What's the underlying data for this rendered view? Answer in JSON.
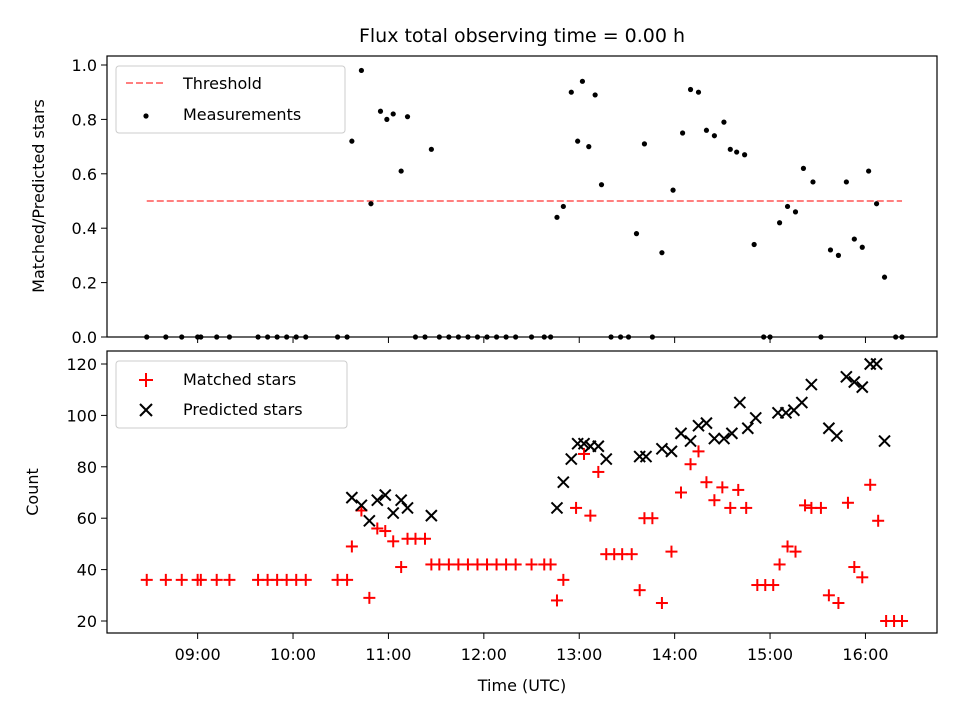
{
  "chart_data": [
    {
      "type": "scatter",
      "title": "Flux total observing time = 0.00 h",
      "xlabel": "",
      "ylabel": "Matched/Predicted stars",
      "ylim": [
        0.0,
        1.0
      ],
      "yticks": [
        "0.0",
        "0.2",
        "0.4",
        "0.6",
        "0.8",
        "1.0"
      ],
      "legend": {
        "placement": "top-left",
        "entries": [
          "Threshold",
          "Measurements"
        ]
      },
      "threshold": {
        "name": "Threshold",
        "value": 0.5,
        "x_start": "08:28",
        "x_end": "16:23",
        "color": "#ff7f7f",
        "style": "dashed"
      },
      "series": [
        {
          "name": "Measurements",
          "color": "#000000",
          "marker": "dot",
          "points": [
            [
              "08:28",
              0.0
            ],
            [
              "08:40",
              0.0
            ],
            [
              "08:50",
              0.0
            ],
            [
              "09:00",
              0.0
            ],
            [
              "09:02",
              0.0
            ],
            [
              "09:12",
              0.0
            ],
            [
              "09:20",
              0.0
            ],
            [
              "09:38",
              0.0
            ],
            [
              "09:44",
              0.0
            ],
            [
              "09:50",
              0.0
            ],
            [
              "09:56",
              0.0
            ],
            [
              "10:02",
              0.0
            ],
            [
              "10:08",
              0.0
            ],
            [
              "10:28",
              0.0
            ],
            [
              "10:34",
              0.0
            ],
            [
              "10:37",
              0.72
            ],
            [
              "10:43",
              0.98
            ],
            [
              "10:49",
              0.49
            ],
            [
              "10:55",
              0.83
            ],
            [
              "10:59",
              0.8
            ],
            [
              "11:03",
              0.82
            ],
            [
              "11:08",
              0.61
            ],
            [
              "11:12",
              0.81
            ],
            [
              "11:17",
              0.0
            ],
            [
              "11:23",
              0.0
            ],
            [
              "11:27",
              0.69
            ],
            [
              "11:32",
              0.0
            ],
            [
              "11:38",
              0.0
            ],
            [
              "11:44",
              0.0
            ],
            [
              "11:50",
              0.0
            ],
            [
              "11:56",
              0.0
            ],
            [
              "12:02",
              0.0
            ],
            [
              "12:08",
              0.0
            ],
            [
              "12:14",
              0.0
            ],
            [
              "12:20",
              0.0
            ],
            [
              "12:30",
              0.0
            ],
            [
              "12:38",
              0.0
            ],
            [
              "12:42",
              0.0
            ],
            [
              "12:46",
              0.44
            ],
            [
              "12:50",
              0.48
            ],
            [
              "12:55",
              0.9
            ],
            [
              "12:59",
              0.72
            ],
            [
              "13:02",
              0.94
            ],
            [
              "13:06",
              0.7
            ],
            [
              "13:10",
              0.89
            ],
            [
              "13:14",
              0.56
            ],
            [
              "13:20",
              0.0
            ],
            [
              "13:26",
              0.0
            ],
            [
              "13:31",
              0.0
            ],
            [
              "13:36",
              0.38
            ],
            [
              "13:41",
              0.71
            ],
            [
              "13:46",
              0.0
            ],
            [
              "13:52",
              0.31
            ],
            [
              "13:59",
              0.54
            ],
            [
              "14:05",
              0.75
            ],
            [
              "14:10",
              0.91
            ],
            [
              "14:15",
              0.9
            ],
            [
              "14:20",
              0.76
            ],
            [
              "14:25",
              0.74
            ],
            [
              "14:31",
              0.79
            ],
            [
              "14:35",
              0.69
            ],
            [
              "14:39",
              0.68
            ],
            [
              "14:44",
              0.67
            ],
            [
              "14:50",
              0.34
            ],
            [
              "14:56",
              0.0
            ],
            [
              "15:00",
              0.0
            ],
            [
              "15:06",
              0.42
            ],
            [
              "15:11",
              0.48
            ],
            [
              "15:16",
              0.46
            ],
            [
              "15:21",
              0.62
            ],
            [
              "15:27",
              0.57
            ],
            [
              "15:32",
              0.0
            ],
            [
              "15:38",
              0.32
            ],
            [
              "15:43",
              0.3
            ],
            [
              "15:48",
              0.57
            ],
            [
              "15:53",
              0.36
            ],
            [
              "15:58",
              0.33
            ],
            [
              "16:02",
              0.61
            ],
            [
              "16:07",
              0.49
            ],
            [
              "16:12",
              0.22
            ],
            [
              "16:19",
              0.0
            ],
            [
              "16:23",
              0.0
            ]
          ]
        }
      ]
    },
    {
      "type": "scatter",
      "title": "",
      "xlabel": "Time (UTC)",
      "ylabel": "Count",
      "ylim": [
        15,
        125
      ],
      "yticks": [
        "20",
        "40",
        "60",
        "80",
        "100",
        "120"
      ],
      "xticks": [
        "09:00",
        "10:00",
        "11:00",
        "12:00",
        "13:00",
        "14:00",
        "15:00",
        "16:00"
      ],
      "xlim": [
        "08:03",
        "16:45"
      ],
      "legend": {
        "placement": "top-left",
        "entries": [
          "Matched stars",
          "Predicted stars"
        ]
      },
      "series": [
        {
          "name": "Matched stars",
          "color": "#ff0000",
          "marker": "plus",
          "points": [
            [
              "08:28",
              36
            ],
            [
              "08:40",
              36
            ],
            [
              "08:50",
              36
            ],
            [
              "09:00",
              36
            ],
            [
              "09:02",
              36
            ],
            [
              "09:12",
              36
            ],
            [
              "09:20",
              36
            ],
            [
              "09:38",
              36
            ],
            [
              "09:44",
              36
            ],
            [
              "09:50",
              36
            ],
            [
              "09:56",
              36
            ],
            [
              "10:02",
              36
            ],
            [
              "10:08",
              36
            ],
            [
              "10:28",
              36
            ],
            [
              "10:34",
              36
            ],
            [
              "10:37",
              49
            ],
            [
              "10:43",
              63
            ],
            [
              "10:48",
              29
            ],
            [
              "10:53",
              56
            ],
            [
              "10:58",
              55
            ],
            [
              "11:03",
              51
            ],
            [
              "11:08",
              41
            ],
            [
              "11:12",
              52
            ],
            [
              "11:17",
              52
            ],
            [
              "11:23",
              52
            ],
            [
              "11:27",
              42
            ],
            [
              "11:32",
              42
            ],
            [
              "11:38",
              42
            ],
            [
              "11:44",
              42
            ],
            [
              "11:50",
              42
            ],
            [
              "11:56",
              42
            ],
            [
              "12:02",
              42
            ],
            [
              "12:08",
              42
            ],
            [
              "12:14",
              42
            ],
            [
              "12:20",
              42
            ],
            [
              "12:30",
              42
            ],
            [
              "12:38",
              42
            ],
            [
              "12:42",
              42
            ],
            [
              "12:46",
              28
            ],
            [
              "12:50",
              36
            ],
            [
              "12:58",
              64
            ],
            [
              "13:03",
              85
            ],
            [
              "13:07",
              61
            ],
            [
              "13:12",
              78
            ],
            [
              "13:17",
              46
            ],
            [
              "13:22",
              46
            ],
            [
              "13:27",
              46
            ],
            [
              "13:33",
              46
            ],
            [
              "13:38",
              32
            ],
            [
              "13:41",
              60
            ],
            [
              "13:46",
              60
            ],
            [
              "13:52",
              27
            ],
            [
              "13:58",
              47
            ],
            [
              "14:04",
              70
            ],
            [
              "14:10",
              81
            ],
            [
              "14:15",
              86
            ],
            [
              "14:20",
              74
            ],
            [
              "14:25",
              67
            ],
            [
              "14:30",
              72
            ],
            [
              "14:35",
              64
            ],
            [
              "14:40",
              71
            ],
            [
              "14:45",
              64
            ],
            [
              "14:52",
              34
            ],
            [
              "14:57",
              34
            ],
            [
              "15:02",
              34
            ],
            [
              "15:06",
              42
            ],
            [
              "15:11",
              49
            ],
            [
              "15:16",
              47
            ],
            [
              "15:22",
              65
            ],
            [
              "15:26",
              64
            ],
            [
              "15:32",
              64
            ],
            [
              "15:37",
              30
            ],
            [
              "15:43",
              27
            ],
            [
              "15:49",
              66
            ],
            [
              "15:53",
              41
            ],
            [
              "15:58",
              37
            ],
            [
              "16:03",
              73
            ],
            [
              "16:08",
              59
            ],
            [
              "16:13",
              20
            ],
            [
              "16:18",
              20
            ],
            [
              "16:23",
              20
            ]
          ]
        },
        {
          "name": "Predicted stars",
          "color": "#000000",
          "marker": "x",
          "points": [
            [
              "10:37",
              68
            ],
            [
              "10:43",
              65
            ],
            [
              "10:48",
              59
            ],
            [
              "10:53",
              67
            ],
            [
              "10:58",
              69
            ],
            [
              "11:03",
              62
            ],
            [
              "11:08",
              67
            ],
            [
              "11:12",
              64
            ],
            [
              "11:27",
              61
            ],
            [
              "12:46",
              64
            ],
            [
              "12:50",
              74
            ],
            [
              "12:55",
              83
            ],
            [
              "12:59",
              89
            ],
            [
              "13:03",
              89
            ],
            [
              "13:07",
              88
            ],
            [
              "13:12",
              88
            ],
            [
              "13:17",
              83
            ],
            [
              "13:38",
              84
            ],
            [
              "13:42",
              84
            ],
            [
              "13:52",
              87
            ],
            [
              "13:58",
              86
            ],
            [
              "14:04",
              93
            ],
            [
              "14:10",
              90
            ],
            [
              "14:15",
              96
            ],
            [
              "14:20",
              97
            ],
            [
              "14:25",
              91
            ],
            [
              "14:31",
              91
            ],
            [
              "14:36",
              93
            ],
            [
              "14:41",
              105
            ],
            [
              "14:46",
              95
            ],
            [
              "14:51",
              99
            ],
            [
              "15:05",
              101
            ],
            [
              "15:10",
              101
            ],
            [
              "15:15",
              102
            ],
            [
              "15:20",
              105
            ],
            [
              "15:26",
              112
            ],
            [
              "15:37",
              95
            ],
            [
              "15:42",
              92
            ],
            [
              "15:48",
              115
            ],
            [
              "15:53",
              113
            ],
            [
              "15:58",
              111
            ],
            [
              "16:03",
              120
            ],
            [
              "16:07",
              120
            ],
            [
              "16:12",
              90
            ]
          ]
        }
      ]
    }
  ]
}
